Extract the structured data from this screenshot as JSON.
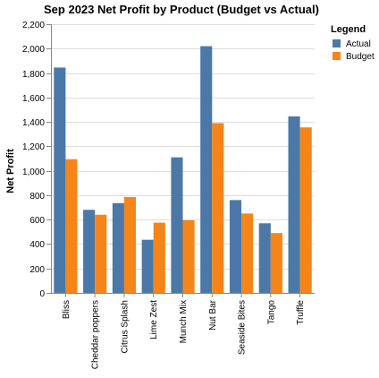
{
  "chart_data": {
    "type": "bar",
    "title": "Sep 2023 Net Profit by Product (Budget vs Actual)",
    "xlabel": "",
    "ylabel": "Net Profit",
    "ylim": [
      0,
      2200
    ],
    "y_ticks": [
      "0",
      "200",
      "400",
      "600",
      "800",
      "1,000",
      "1,200",
      "1,400",
      "1,600",
      "1,800",
      "2,000",
      "2,200"
    ],
    "y_tick_values": [
      0,
      200,
      400,
      600,
      800,
      1000,
      1200,
      1400,
      1600,
      1800,
      2000,
      2200
    ],
    "grid": true,
    "legend": {
      "title": "Legend",
      "position": "top-right"
    },
    "categories": [
      "Bliss",
      "Cheddar poppers",
      "Citrus Splash",
      "Lime Zest",
      "Munch Mix",
      "Nut Bar",
      "Seaside Bites",
      "Tango",
      "Truffle"
    ],
    "series": [
      {
        "name": "Actual",
        "color": "#4c78a8",
        "values": [
          1845,
          680,
          735,
          435,
          1110,
          2020,
          760,
          570,
          1445
        ]
      },
      {
        "name": "Budget",
        "color": "#f58518",
        "values": [
          1095,
          640,
          785,
          575,
          595,
          1390,
          650,
          490,
          1355
        ]
      }
    ]
  }
}
